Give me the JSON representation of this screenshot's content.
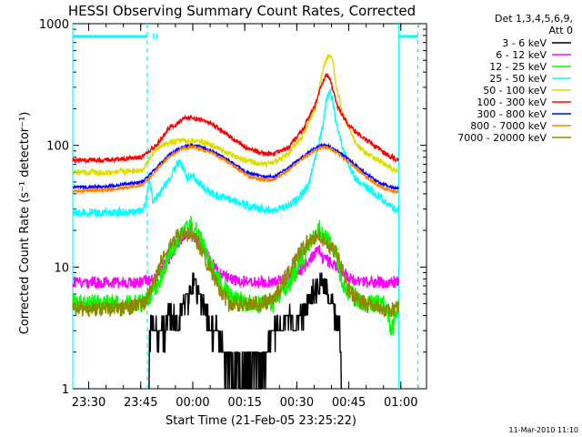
{
  "chart_data": {
    "type": "line",
    "title": "HESSI Observing Summary Count Rates, Corrected",
    "ylabel": "Corrected Count Rate (s⁻¹ detector⁻¹)",
    "xlabel": "Start Time (21-Feb-05 23:25:22)",
    "y_scale": "log",
    "ylim": [
      1,
      1000
    ],
    "xlim_minutes_after_start": [
      0,
      102
    ],
    "y_ticks": [
      {
        "value": 1,
        "label": "1"
      },
      {
        "value": 10,
        "label": "10"
      },
      {
        "value": 100,
        "label": "100"
      },
      {
        "value": 1000,
        "label": "1000"
      }
    ],
    "x_ticks": [
      {
        "label": "23:30",
        "minute": 4.6
      },
      {
        "label": "23:45",
        "minute": 19.6
      },
      {
        "label": "00:00",
        "minute": 34.6
      },
      {
        "label": "00:15",
        "minute": 49.6
      },
      {
        "label": "00:30",
        "minute": 64.6
      },
      {
        "label": "00:45",
        "minute": 79.6
      },
      {
        "label": "01:00",
        "minute": 94.6
      }
    ],
    "legend": {
      "placement": "right",
      "header": [
        "Det 1,3,4,5,6,9,",
        "Att 0"
      ],
      "entries": [
        {
          "label": "3 - 6 keV",
          "color": "#000000"
        },
        {
          "label": "6 - 12 keV",
          "color": "#ff00ff"
        },
        {
          "label": "12 - 25 keV",
          "color": "#00ff00"
        },
        {
          "label": "25 - 50 keV",
          "color": "#00ffff"
        },
        {
          "label": "50 - 100 keV",
          "color": "#dddd00"
        },
        {
          "label": "100 - 300 keV",
          "color": "#ff0000"
        },
        {
          "label": "300 - 800 keV",
          "color": "#0000ff"
        },
        {
          "label": "800 - 7000 keV",
          "color": "#ff8000"
        },
        {
          "label": "7000 - 20000 keV",
          "color": "#8b8b00"
        }
      ]
    },
    "annotations": {
      "night_marker": "N",
      "timestamp": "11-Mar-2010 11:10",
      "night_bars_minutes": [
        [
          0,
          21.5
        ],
        [
          94,
          99.5
        ]
      ],
      "solid_vlines_minutes": [
        0,
        94
      ],
      "dashed_vlines_minutes": [
        21.5,
        99.5
      ]
    },
    "series": [
      {
        "name": "3 - 6 keV",
        "color": "#000000",
        "points": [
          [
            22,
            1
          ],
          [
            22,
            3
          ],
          [
            26,
            3
          ],
          [
            28,
            4
          ],
          [
            30,
            3.5
          ],
          [
            32,
            5
          ],
          [
            34,
            6
          ],
          [
            35,
            8
          ],
          [
            36,
            6
          ],
          [
            38,
            5
          ],
          [
            40,
            3
          ],
          [
            42,
            3
          ],
          [
            44,
            1.5
          ],
          [
            46,
            1.5
          ],
          [
            48,
            1.5
          ],
          [
            50,
            1.5
          ],
          [
            52,
            1.5
          ],
          [
            54,
            1.5
          ],
          [
            56,
            2
          ],
          [
            58,
            3
          ],
          [
            60,
            3
          ],
          [
            62,
            4
          ],
          [
            64,
            3.5
          ],
          [
            66,
            4
          ],
          [
            68,
            5
          ],
          [
            70,
            7
          ],
          [
            72,
            8
          ],
          [
            73,
            7
          ],
          [
            74,
            6
          ],
          [
            75,
            5
          ],
          [
            76,
            4
          ],
          [
            77,
            3
          ],
          [
            77.5,
            1
          ]
        ]
      },
      {
        "name": "6 - 12 keV",
        "color": "#ff00ff",
        "points": [
          [
            0,
            7.5
          ],
          [
            10,
            7.5
          ],
          [
            20,
            7.5
          ],
          [
            23,
            8
          ],
          [
            26,
            10
          ],
          [
            28,
            12
          ],
          [
            30,
            15
          ],
          [
            32,
            18
          ],
          [
            34,
            19
          ],
          [
            36,
            17
          ],
          [
            38,
            14
          ],
          [
            40,
            11
          ],
          [
            42,
            9
          ],
          [
            45,
            8
          ],
          [
            50,
            7.5
          ],
          [
            55,
            7.5
          ],
          [
            58,
            7.5
          ],
          [
            62,
            8
          ],
          [
            65,
            9
          ],
          [
            68,
            11
          ],
          [
            70,
            13
          ],
          [
            71,
            14
          ],
          [
            72,
            12
          ],
          [
            74,
            11
          ],
          [
            76,
            10
          ],
          [
            78,
            9
          ],
          [
            80,
            8
          ],
          [
            84,
            7.5
          ],
          [
            90,
            7.5
          ],
          [
            94,
            7.5
          ]
        ]
      },
      {
        "name": "12 - 25 keV",
        "color": "#00ff00",
        "points": [
          [
            0,
            5
          ],
          [
            10,
            5
          ],
          [
            20,
            5
          ],
          [
            23,
            6
          ],
          [
            26,
            9
          ],
          [
            28,
            13
          ],
          [
            30,
            16
          ],
          [
            32,
            20
          ],
          [
            34,
            22
          ],
          [
            36,
            19
          ],
          [
            38,
            14
          ],
          [
            40,
            10
          ],
          [
            42,
            8
          ],
          [
            45,
            6
          ],
          [
            50,
            5
          ],
          [
            55,
            5
          ],
          [
            58,
            5
          ],
          [
            62,
            7
          ],
          [
            65,
            10
          ],
          [
            68,
            15
          ],
          [
            70,
            19
          ],
          [
            71,
            21
          ],
          [
            72,
            19
          ],
          [
            74,
            16
          ],
          [
            76,
            13
          ],
          [
            77,
            9
          ],
          [
            78,
            7
          ],
          [
            80,
            6
          ],
          [
            84,
            5
          ],
          [
            90,
            5
          ],
          [
            92,
            3
          ],
          [
            94,
            5
          ]
        ]
      },
      {
        "name": "25 - 50 keV",
        "color": "#00ffff",
        "points": [
          [
            0,
            28
          ],
          [
            10,
            28
          ],
          [
            20,
            29
          ],
          [
            21,
            33
          ],
          [
            22,
            55
          ],
          [
            23,
            36
          ],
          [
            25,
            40
          ],
          [
            28,
            55
          ],
          [
            30,
            70
          ],
          [
            31,
            72
          ],
          [
            33,
            55
          ],
          [
            35,
            55
          ],
          [
            37,
            47
          ],
          [
            40,
            40
          ],
          [
            45,
            36
          ],
          [
            50,
            32
          ],
          [
            55,
            30
          ],
          [
            58,
            29
          ],
          [
            60,
            30
          ],
          [
            65,
            36
          ],
          [
            68,
            48
          ],
          [
            70,
            80
          ],
          [
            72,
            140
          ],
          [
            73,
            220
          ],
          [
            74,
            280
          ],
          [
            75,
            230
          ],
          [
            76,
            150
          ],
          [
            78,
            90
          ],
          [
            80,
            65
          ],
          [
            82,
            52
          ],
          [
            85,
            45
          ],
          [
            90,
            35
          ],
          [
            94,
            28
          ]
        ]
      },
      {
        "name": "50 - 100 keV",
        "color": "#dddd00",
        "points": [
          [
            0,
            60
          ],
          [
            10,
            60
          ],
          [
            20,
            62
          ],
          [
            22,
            75
          ],
          [
            24,
            95
          ],
          [
            26,
            100
          ],
          [
            28,
            105
          ],
          [
            30,
            108
          ],
          [
            32,
            110
          ],
          [
            35,
            108
          ],
          [
            38,
            105
          ],
          [
            42,
            95
          ],
          [
            45,
            85
          ],
          [
            50,
            75
          ],
          [
            55,
            70
          ],
          [
            58,
            72
          ],
          [
            62,
            85
          ],
          [
            66,
            115
          ],
          [
            70,
            200
          ],
          [
            72,
            400
          ],
          [
            73,
            500
          ],
          [
            74,
            560
          ],
          [
            75,
            480
          ],
          [
            76,
            300
          ],
          [
            78,
            180
          ],
          [
            80,
            130
          ],
          [
            82,
            100
          ],
          [
            85,
            85
          ],
          [
            90,
            70
          ],
          [
            94,
            60
          ]
        ]
      },
      {
        "name": "100 - 300 keV",
        "color": "#ff0000",
        "points": [
          [
            0,
            75
          ],
          [
            10,
            76
          ],
          [
            20,
            80
          ],
          [
            24,
            100
          ],
          [
            28,
            140
          ],
          [
            32,
            165
          ],
          [
            34,
            170
          ],
          [
            36,
            165
          ],
          [
            40,
            150
          ],
          [
            45,
            120
          ],
          [
            50,
            95
          ],
          [
            55,
            85
          ],
          [
            58,
            85
          ],
          [
            62,
            95
          ],
          [
            66,
            130
          ],
          [
            70,
            220
          ],
          [
            72,
            330
          ],
          [
            73,
            380
          ],
          [
            74,
            360
          ],
          [
            75,
            290
          ],
          [
            76,
            220
          ],
          [
            78,
            170
          ],
          [
            80,
            140
          ],
          [
            84,
            115
          ],
          [
            88,
            95
          ],
          [
            92,
            80
          ],
          [
            94,
            75
          ]
        ]
      },
      {
        "name": "300 - 800 keV",
        "color": "#0000ff",
        "points": [
          [
            0,
            45
          ],
          [
            10,
            46
          ],
          [
            20,
            50
          ],
          [
            24,
            65
          ],
          [
            28,
            85
          ],
          [
            32,
            98
          ],
          [
            34,
            100
          ],
          [
            36,
            98
          ],
          [
            40,
            90
          ],
          [
            45,
            75
          ],
          [
            50,
            60
          ],
          [
            55,
            55
          ],
          [
            58,
            55
          ],
          [
            62,
            65
          ],
          [
            66,
            80
          ],
          [
            70,
            95
          ],
          [
            72,
            100
          ],
          [
            74,
            98
          ],
          [
            76,
            90
          ],
          [
            80,
            75
          ],
          [
            84,
            60
          ],
          [
            88,
            50
          ],
          [
            92,
            45
          ],
          [
            94,
            44
          ]
        ]
      },
      {
        "name": "800 - 7000 keV",
        "color": "#ff8000",
        "points": [
          [
            0,
            42
          ],
          [
            10,
            43
          ],
          [
            20,
            47
          ],
          [
            24,
            62
          ],
          [
            28,
            82
          ],
          [
            32,
            95
          ],
          [
            34,
            97
          ],
          [
            36,
            95
          ],
          [
            40,
            87
          ],
          [
            45,
            72
          ],
          [
            50,
            57
          ],
          [
            55,
            52
          ],
          [
            58,
            52
          ],
          [
            62,
            62
          ],
          [
            66,
            77
          ],
          [
            70,
            92
          ],
          [
            72,
            97
          ],
          [
            74,
            95
          ],
          [
            76,
            87
          ],
          [
            80,
            72
          ],
          [
            84,
            57
          ],
          [
            88,
            47
          ],
          [
            92,
            42
          ],
          [
            94,
            41
          ]
        ]
      },
      {
        "name": "7000 - 20000 keV",
        "color": "#8b8b00",
        "points": [
          [
            0,
            4.5
          ],
          [
            10,
            4.5
          ],
          [
            20,
            4.8
          ],
          [
            22,
            6
          ],
          [
            24,
            8
          ],
          [
            26,
            12
          ],
          [
            28,
            15
          ],
          [
            30,
            18
          ],
          [
            32,
            19
          ],
          [
            34,
            19
          ],
          [
            36,
            16
          ],
          [
            38,
            12
          ],
          [
            40,
            9
          ],
          [
            42,
            7
          ],
          [
            45,
            5
          ],
          [
            50,
            5
          ],
          [
            55,
            5
          ],
          [
            58,
            5.5
          ],
          [
            60,
            7
          ],
          [
            64,
            11
          ],
          [
            66,
            14
          ],
          [
            68,
            16
          ],
          [
            70,
            18
          ],
          [
            71,
            19
          ],
          [
            72,
            17
          ],
          [
            74,
            15
          ],
          [
            76,
            13
          ],
          [
            78,
            9
          ],
          [
            80,
            6
          ],
          [
            84,
            5
          ],
          [
            90,
            4.5
          ],
          [
            94,
            4.5
          ]
        ]
      }
    ]
  }
}
